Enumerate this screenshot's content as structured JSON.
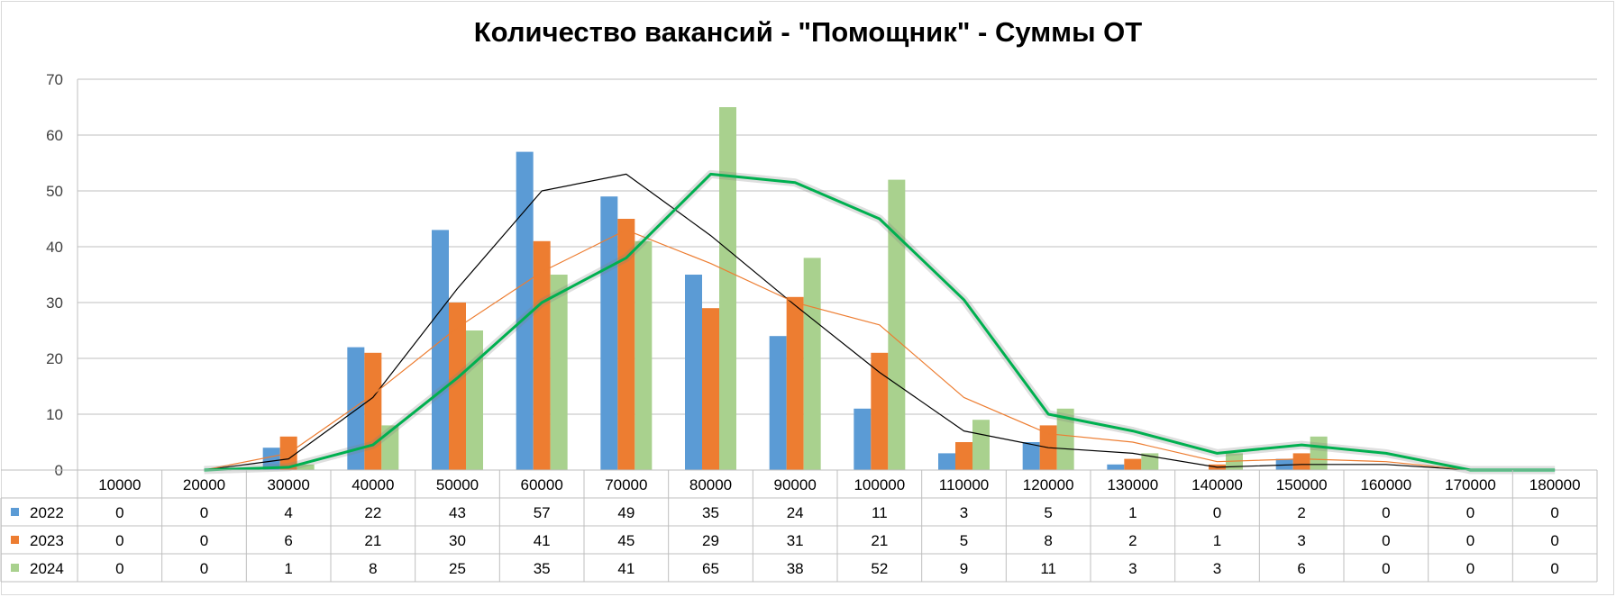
{
  "chart_data": {
    "type": "bar",
    "title": "Количество вакансий - \"Помощник\" - Суммы ОТ",
    "categories": [
      "10000",
      "20000",
      "30000",
      "40000",
      "50000",
      "60000",
      "70000",
      "80000",
      "90000",
      "100000",
      "110000",
      "120000",
      "130000",
      "140000",
      "150000",
      "160000",
      "170000",
      "180000"
    ],
    "series": [
      {
        "name": "2022",
        "color": "#5b9bd5",
        "values": [
          0,
          0,
          4,
          22,
          43,
          57,
          49,
          35,
          24,
          11,
          3,
          5,
          1,
          0,
          2,
          0,
          0,
          0
        ]
      },
      {
        "name": "2023",
        "color": "#ed7d31",
        "values": [
          0,
          0,
          6,
          21,
          30,
          41,
          45,
          29,
          31,
          21,
          5,
          8,
          2,
          1,
          3,
          0,
          0,
          0
        ]
      },
      {
        "name": "2024",
        "color": "#a9d18e",
        "values": [
          0,
          0,
          1,
          8,
          25,
          35,
          41,
          65,
          38,
          52,
          9,
          11,
          3,
          3,
          6,
          0,
          0,
          0
        ]
      }
    ],
    "trend_colors": {
      "2022": "#000000",
      "2023": "#ed7d31",
      "2024": "#00b050"
    },
    "ylim": [
      0,
      70
    ],
    "yticks": [
      0,
      10,
      20,
      30,
      40,
      50,
      60,
      70
    ],
    "grid": true,
    "legend": "data-table-bottom",
    "xlabel": "",
    "ylabel": ""
  }
}
